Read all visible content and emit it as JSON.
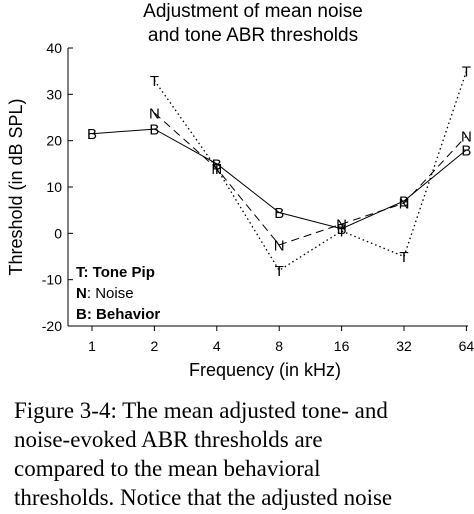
{
  "chart_data": {
    "type": "line",
    "title": [
      "Adjustment of mean noise",
      "and tone ABR  thresholds"
    ],
    "xlabel": "Frequency (in kHz)",
    "ylabel": "Threshold (in dB SPL)",
    "x": [
      1,
      2,
      4,
      8,
      16,
      32,
      64
    ],
    "x_tick_labels": [
      "1",
      "2",
      "4",
      "8",
      "16",
      "32",
      "64"
    ],
    "x_scale": "log2",
    "y_ticks": [
      40,
      30,
      20,
      10,
      0,
      -10,
      -20
    ],
    "ylim": [
      -20,
      40
    ],
    "grid": false,
    "series": [
      {
        "name": "Tone Pip",
        "marker": "T",
        "style": "dotted",
        "x": [
          2,
          4,
          8,
          16,
          32,
          64
        ],
        "values": [
          33,
          14,
          -8,
          0.5,
          -5,
          35
        ]
      },
      {
        "name": "Noise",
        "marker": "N",
        "style": "dashed",
        "x": [
          2,
          4,
          8,
          16,
          32,
          64
        ],
        "values": [
          26,
          14,
          -2.5,
          2,
          6.5,
          21
        ]
      },
      {
        "name": "Behavior",
        "marker": "B",
        "style": "solid",
        "x": [
          1,
          2,
          4,
          8,
          16,
          32,
          64
        ],
        "values": [
          21.5,
          22.5,
          15,
          4.5,
          1,
          7,
          18
        ]
      }
    ],
    "legend": {
      "placement": "bottom-left",
      "entries": [
        {
          "key": "T",
          "label": "Tone Pip"
        },
        {
          "key": "N",
          "label": "Noise"
        },
        {
          "key": "B",
          "label": "Behavior"
        }
      ]
    }
  },
  "caption": {
    "lines": [
      "Figure 3-4: The mean adjusted tone- and",
      "noise-evoked ABR thresholds are",
      "compared to the mean behavioral",
      "thresholds. Notice that the adjusted noise"
    ]
  }
}
